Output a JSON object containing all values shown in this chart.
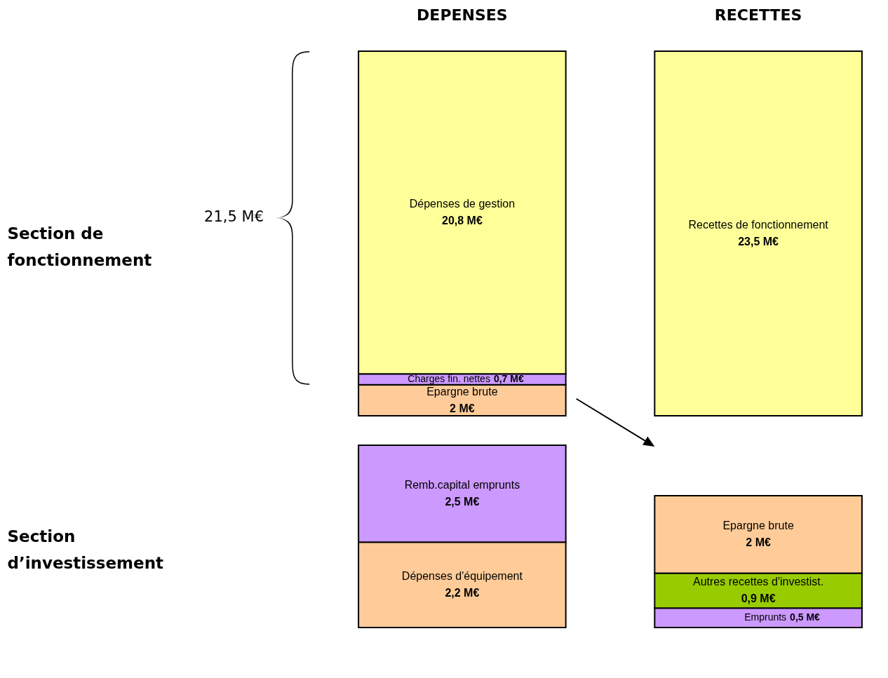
{
  "chart_data": [
    {
      "type": "bar",
      "stacked": true,
      "categories": [
        "DEPENSES",
        "RECETTES"
      ],
      "ylabel": "Section de fonctionnement",
      "tick_labels": "x",
      "annotations": [
        "21,5 M€"
      ],
      "series": [
        {
          "name": "Epargne brute",
          "color": "#ffcc99",
          "values": [
            2,
            null
          ],
          "value_labels": [
            "2 M€",
            null
          ]
        },
        {
          "name": "Charges fin. nettes",
          "color": "#cc99ff",
          "values": [
            0.7,
            null
          ],
          "value_labels": [
            "0,7 M€",
            null
          ]
        },
        {
          "name": "Dépenses de gestion",
          "color": "#ffff99",
          "values": [
            20.8,
            null
          ],
          "value_labels": [
            "20,8 M€",
            null
          ]
        },
        {
          "name": "Recettes de fonctionnement",
          "color": "#ffff99",
          "values": [
            null,
            23.5
          ],
          "value_labels": [
            null,
            "23,5 M€"
          ]
        }
      ]
    },
    {
      "type": "bar",
      "stacked": true,
      "categories": [
        null,
        null
      ],
      "ylabel": "Section d’investissement",
      "tick_labels": false,
      "series": [
        {
          "name": "Dépenses d'équipement",
          "color": "#ffcc99",
          "values": [
            2.2,
            null
          ],
          "value_labels": [
            "2,2 M€",
            null
          ]
        },
        {
          "name": "Remb.capital emprunts",
          "color": "#cc99ff",
          "values": [
            2.5,
            null
          ],
          "value_labels": [
            "2,5 M€",
            null
          ]
        },
        {
          "name": "Emprunts",
          "color": "#cc99ff",
          "values": [
            null,
            0.5
          ],
          "value_labels": [
            null,
            "0,5 M€"
          ]
        },
        {
          "name": "Autres recettes d'investist.",
          "color": "#99cc00",
          "values": [
            null,
            0.9
          ],
          "value_labels": [
            null,
            "0,9 M€"
          ]
        },
        {
          "name": "Epargne brute",
          "color": "#ffcc99",
          "values": [
            null,
            2
          ],
          "value_labels": [
            null,
            "2 M€"
          ]
        }
      ]
    }
  ]
}
